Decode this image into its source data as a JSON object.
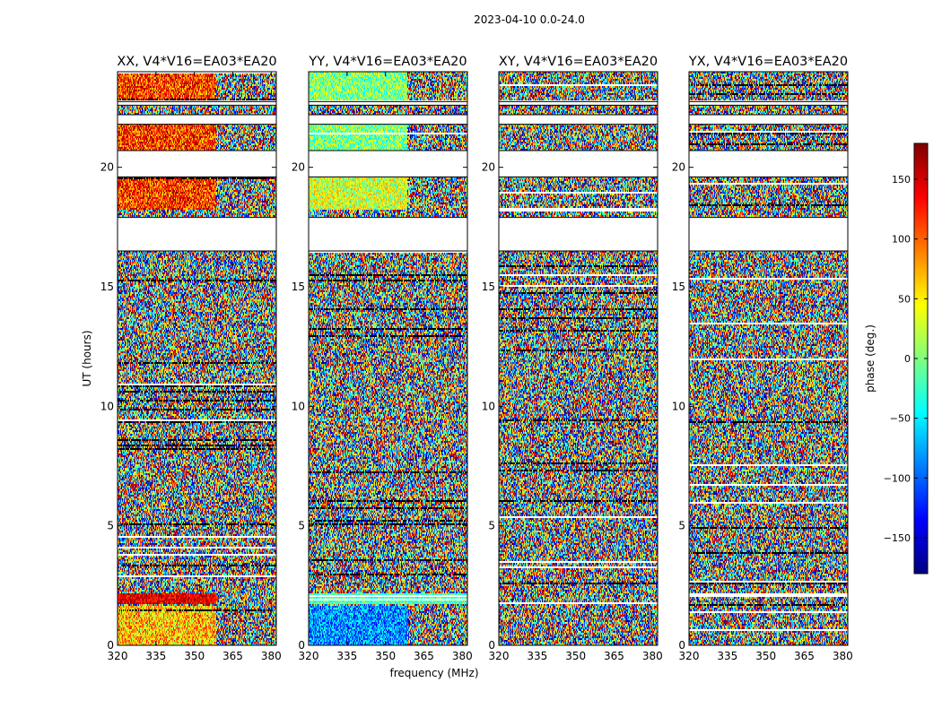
{
  "figure": {
    "suptitle": "2023-04-10 0.0-24.0"
  },
  "chart_data": {
    "type": "heatmap",
    "title": "2023-04-10 0.0-24.0",
    "xlabel": "frequency (MHz)",
    "ylabel": "UT (hours)",
    "xlim": [
      320,
      382
    ],
    "ylim": [
      0,
      24
    ],
    "xticks": [
      320,
      335,
      350,
      365,
      380
    ],
    "yticks": [
      0,
      5,
      10,
      15,
      20
    ],
    "colorbar": {
      "label": "phase (deg.)",
      "range": [
        -180,
        180
      ],
      "ticks": [
        -150,
        -100,
        -50,
        0,
        50,
        100,
        150
      ],
      "tick_labels": [
        "−150",
        "−100",
        "−50",
        "0",
        "50",
        "100",
        "150"
      ],
      "colormap": "jet",
      "colors": [
        "#00007f",
        "#0000ff",
        "#007fff",
        "#00ffff",
        "#7fff7f",
        "#ffff00",
        "#ff7f00",
        "#ff0000",
        "#7f0000"
      ]
    },
    "panels": [
      {
        "title": "XX, V4*V16=EA03*EA20",
        "phase_note": "coherent"
      },
      {
        "title": "YY, V4*V16=EA03*EA20",
        "phase_note": "coherent"
      },
      {
        "title": "XY, V4*V16=EA03*EA20",
        "phase_note": "noise"
      },
      {
        "title": "YX, V4*V16=EA03*EA20",
        "phase_note": "noise"
      }
    ],
    "flagged_ut_ranges": [
      [
        16.5,
        17.9
      ],
      [
        19.6,
        20.7
      ],
      [
        21.8,
        22.2
      ],
      [
        22.6,
        22.75
      ]
    ]
  }
}
